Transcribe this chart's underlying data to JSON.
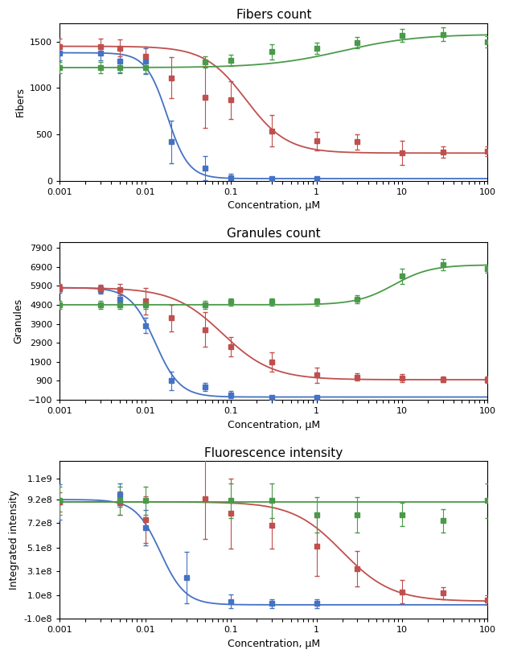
{
  "titles": [
    "Fibers count",
    "Granules count",
    "Fluorescence intensity"
  ],
  "ylabels": [
    "Fibers",
    "Granules",
    "Integrated intensity"
  ],
  "xlabel": "Concentration, μM",
  "colors": {
    "blue": "#4472C4",
    "red": "#C0504D",
    "green": "#4A9A4A"
  },
  "fibers": {
    "blue_x": [
      0.001,
      0.003,
      0.005,
      0.01,
      0.02,
      0.05,
      0.1,
      0.3,
      1.0
    ],
    "blue_y": [
      1380,
      1380,
      1290,
      1290,
      420,
      140,
      30,
      25,
      25
    ],
    "blue_err": [
      80,
      80,
      120,
      140,
      230,
      130,
      50,
      20,
      20
    ],
    "red_x": [
      0.001,
      0.003,
      0.005,
      0.01,
      0.02,
      0.05,
      0.1,
      0.3,
      1.0,
      3.0,
      10,
      30,
      100
    ],
    "red_y": [
      1450,
      1450,
      1430,
      1340,
      1110,
      900,
      870,
      540,
      430,
      420,
      300,
      310,
      320
    ],
    "red_err": [
      80,
      80,
      90,
      110,
      220,
      330,
      200,
      170,
      100,
      80,
      130,
      60,
      50
    ],
    "green_x": [
      0.001,
      0.003,
      0.005,
      0.01,
      0.05,
      0.1,
      0.3,
      1.0,
      3.0,
      10,
      30,
      100
    ],
    "green_y": [
      1220,
      1220,
      1220,
      1220,
      1280,
      1300,
      1390,
      1430,
      1490,
      1570,
      1580,
      1500
    ],
    "green_err": [
      60,
      60,
      60,
      60,
      60,
      60,
      80,
      60,
      60,
      70,
      70,
      60
    ],
    "blue_fit_params": [
      1380,
      25,
      0.018,
      3.5
    ],
    "red_fit_params": [
      1450,
      300,
      0.15,
      1.8
    ],
    "green_fit_params_type": "logistic_up",
    "green_fit_params": [
      1220,
      1580,
      2.0,
      1.0
    ],
    "ylim": [
      0,
      1700
    ],
    "yticks": [
      0,
      500,
      1000,
      1500
    ]
  },
  "granules": {
    "blue_x": [
      0.001,
      0.003,
      0.005,
      0.01,
      0.02,
      0.05,
      0.1,
      0.3,
      1.0
    ],
    "blue_y": [
      5750,
      5700,
      5200,
      3800,
      900,
      580,
      170,
      50,
      50
    ],
    "blue_err": [
      200,
      200,
      300,
      400,
      500,
      200,
      200,
      50,
      50
    ],
    "red_x": [
      0.001,
      0.003,
      0.005,
      0.01,
      0.02,
      0.05,
      0.1,
      0.3,
      1.0,
      3.0,
      10,
      30,
      100
    ],
    "red_y": [
      5800,
      5750,
      5700,
      5100,
      4200,
      3600,
      2700,
      1900,
      1200,
      1100,
      1050,
      980,
      960
    ],
    "red_err": [
      200,
      200,
      300,
      700,
      700,
      900,
      500,
      500,
      400,
      200,
      200,
      150,
      150
    ],
    "green_x": [
      0.001,
      0.003,
      0.005,
      0.01,
      0.05,
      0.1,
      0.3,
      1.0,
      3.0,
      10,
      30,
      100
    ],
    "green_y": [
      4900,
      4900,
      4900,
      4900,
      4900,
      5050,
      5050,
      5050,
      5200,
      6400,
      7000,
      6800
    ],
    "green_err": [
      200,
      200,
      200,
      200,
      200,
      200,
      200,
      200,
      200,
      400,
      300,
      200
    ],
    "blue_fit_params": [
      5800,
      50,
      0.013,
      3.0
    ],
    "red_fit_params": [
      5800,
      960,
      0.08,
      1.5
    ],
    "green_fit_params": [
      4900,
      7000,
      8.0,
      2.0
    ],
    "ylim": [
      -100,
      8200
    ],
    "yticks": [
      -100,
      900,
      1900,
      2900,
      3900,
      4900,
      5900,
      6900,
      7900
    ]
  },
  "fluorescence": {
    "blue_x": [
      0.001,
      0.005,
      0.01,
      0.03,
      0.1,
      0.3,
      1.0
    ],
    "blue_y": [
      900000000.0,
      960000000.0,
      680000000.0,
      250000000.0,
      50000000.0,
      30000000.0,
      30000000.0
    ],
    "blue_err": [
      150000000.0,
      100000000.0,
      150000000.0,
      220000000.0,
      60000000.0,
      40000000.0,
      40000000.0
    ],
    "red_x": [
      0.001,
      0.005,
      0.01,
      0.05,
      0.1,
      0.3,
      1.0,
      3.0,
      10,
      30,
      100
    ],
    "red_y": [
      900000000.0,
      890000000.0,
      750000000.0,
      930000000.0,
      800000000.0,
      700000000.0,
      520000000.0,
      330000000.0,
      130000000.0,
      120000000.0,
      60000000.0
    ],
    "red_err": [
      80000000.0,
      100000000.0,
      200000000.0,
      350000000.0,
      300000000.0,
      200000000.0,
      250000000.0,
      150000000.0,
      100000000.0,
      50000000.0,
      40000000.0
    ],
    "green_x": [
      0.001,
      0.005,
      0.01,
      0.1,
      0.3,
      1.0,
      3.0,
      10,
      30,
      100
    ],
    "green_y": [
      910000000.0,
      910000000.0,
      910000000.0,
      910000000.0,
      910000000.0,
      790000000.0,
      790000000.0,
      790000000.0,
      740000000.0,
      910000000.0
    ],
    "green_err": [
      120000000.0,
      120000000.0,
      120000000.0,
      150000000.0,
      150000000.0,
      150000000.0,
      150000000.0,
      100000000.0,
      100000000.0,
      150000000.0
    ],
    "blue_fit_params": [
      920000000.0,
      20000000.0,
      0.015,
      3.0
    ],
    "red_fit_params": [
      900000000.0,
      50000000.0,
      2.0,
      1.5
    ],
    "green_line_y": 900000000.0,
    "ylim": [
      -100000000.0,
      1250000000.0
    ],
    "yticks": [
      -100000000.0,
      100000000.0,
      310000000.0,
      510000000.0,
      720000000.0,
      920000000.0,
      1100000000.0
    ]
  }
}
